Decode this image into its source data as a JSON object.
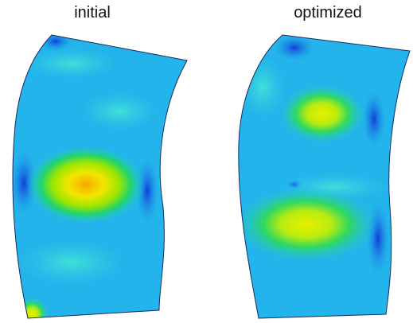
{
  "panels": [
    {
      "label": "initial"
    },
    {
      "label": "optimized"
    }
  ]
}
